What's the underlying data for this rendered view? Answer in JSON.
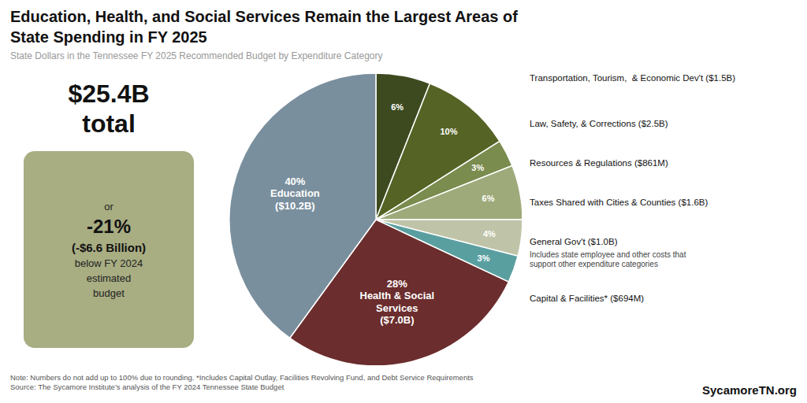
{
  "chart_data": {
    "type": "pie",
    "title": "Education, Health, and Social Services Remain the Largest Areas of\nState Spending in FY 2025",
    "subtitle": "State Dollars in the Tennessee FY 2025 Recommended Budget by Expenditure Category",
    "categories": [
      "Transportation, Tourism,  & Economic Dev't ($1.5B)",
      "Law, Safety, & Corrections ($2.5B)",
      "Resources & Regulations ($861M)",
      "Taxes Shared with Cities & Counties ($1.6B)",
      "General Gov't ($1.0B)",
      "Capital & Facilities* ($694M)",
      null,
      null
    ],
    "values": [
      6,
      10,
      3,
      6,
      4,
      3,
      28,
      40
    ],
    "value_labels": [
      "6%",
      "10%",
      "3%",
      "6%",
      "4%",
      "3%",
      "28%\nHealth & Social\nServices\n($7.0B)",
      "40%\nEducation\n($10.2B)"
    ],
    "colors": [
      "#3d4a1f",
      "#556325",
      "#7a8c4e",
      "#9eaa7a",
      "#bfc4a8",
      "#5a9fa0",
      "#6b2d2d",
      "#7a8f9e"
    ],
    "data_labels": true,
    "annotations": [
      "$25.4B\ntotal",
      "or\n-21%\n(-$6.6 Billion)\nbelow FY 2024\nestimated\nbudget",
      "Includes state employee and other costs that\nsupport other expenditure categories",
      "Note: Numbers do not add up to 100% due to rounding. *Includes Capital Outlay, Facilities Revolving Fund, and Debt Service Requirements\nSource: The Sycamore Institute’s analysis of the FY 2024 Tennessee State Budget",
      "SycamoreTN.org"
    ]
  }
}
